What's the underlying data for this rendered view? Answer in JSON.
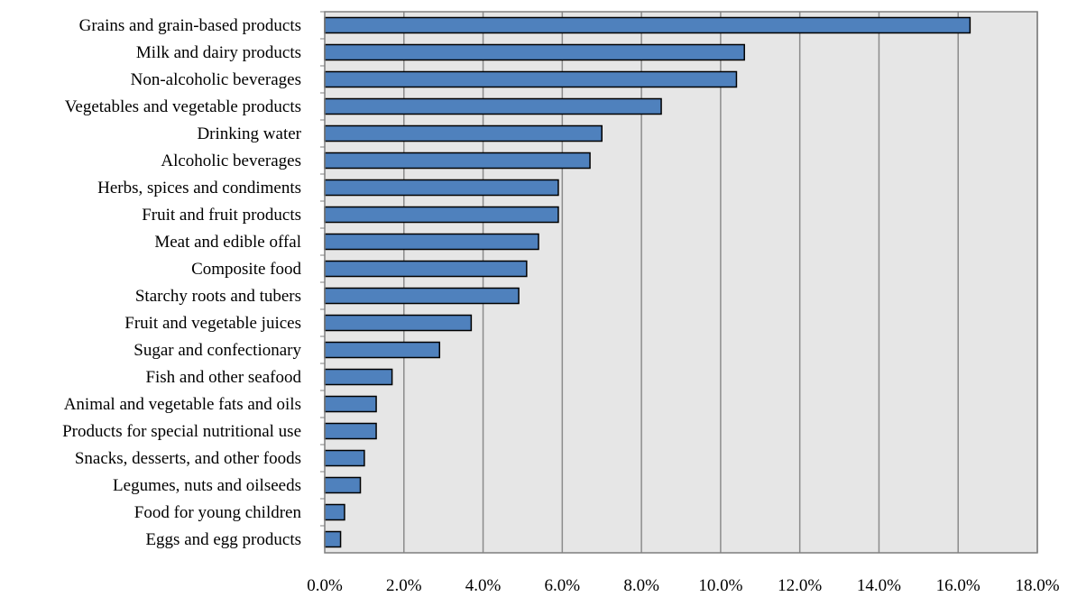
{
  "chart_data": {
    "type": "bar",
    "orientation": "horizontal",
    "title": "",
    "xlabel": "",
    "ylabel": "",
    "xlim": [
      0,
      18
    ],
    "x_tick_step": 2,
    "tick_format": "percent_one_decimal",
    "grid": "vertical",
    "legend": "none",
    "categories": [
      "Grains and grain-based products",
      "Milk and dairy products",
      "Non-alcoholic beverages",
      "Vegetables and vegetable products",
      "Drinking water",
      "Alcoholic beverages",
      "Herbs, spices and condiments",
      "Fruit and fruit products",
      "Meat and edible offal",
      "Composite food",
      "Starchy roots and tubers",
      "Fruit and vegetable juices",
      "Sugar and confectionary",
      "Fish and other seafood",
      "Animal and vegetable fats and oils",
      "Products for special nutritional use",
      "Snacks, desserts, and other foods",
      "Legumes, nuts and oilseeds",
      "Food for young children",
      "Eggs and egg products"
    ],
    "values": [
      16.3,
      10.6,
      10.4,
      8.5,
      7.0,
      6.7,
      5.9,
      5.9,
      5.4,
      5.1,
      4.9,
      3.7,
      2.9,
      1.7,
      1.3,
      1.3,
      1.0,
      0.9,
      0.5,
      0.4
    ],
    "x_tick_labels": [
      "0.0%",
      "2.0%",
      "4.0%",
      "6.0%",
      "8.0%",
      "10.0%",
      "12.0%",
      "14.0%",
      "16.0%",
      "18.0%"
    ]
  },
  "colors": {
    "bar_fill": "#4F81BD",
    "bar_stroke": "#000000",
    "plot_background": "#E6E6E6",
    "gridline": "#8C8C8C",
    "axis": "#7F7F7F"
  }
}
